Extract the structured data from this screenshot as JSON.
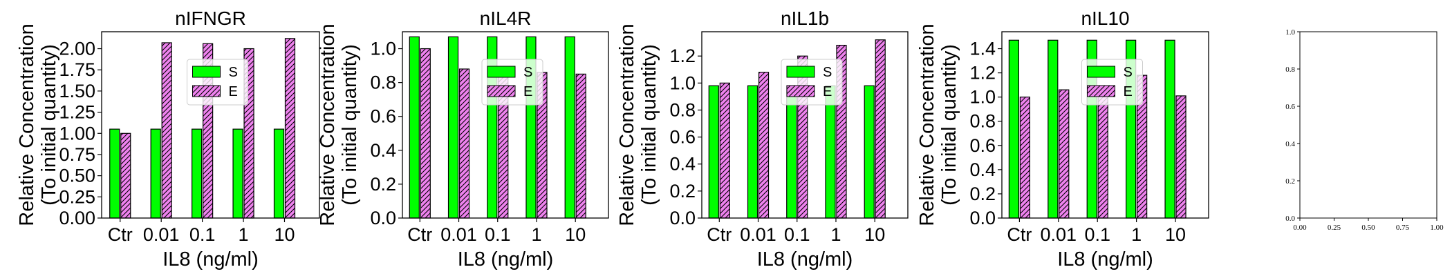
{
  "colors": {
    "S": "#00ff00",
    "E": "#ee82ee",
    "edge": "#000000"
  },
  "chart_data": [
    {
      "type": "bar",
      "title": "nIFNGR",
      "xlabel": "IL8 (ng/ml)",
      "ylabel": [
        "Relative Concentration",
        "(To initial quantity)"
      ],
      "categories": [
        "Ctr",
        "0.01",
        "0.1",
        "1",
        "10"
      ],
      "ylim": [
        0,
        2.2
      ],
      "yticks": [
        0.0,
        0.25,
        0.5,
        0.75,
        1.0,
        1.25,
        1.5,
        1.75,
        2.0
      ],
      "ytick_labels": [
        "0.00",
        "0.25",
        "0.50",
        "0.75",
        "1.00",
        "1.25",
        "1.50",
        "1.75",
        "2.00"
      ],
      "legend": "upper-center",
      "series": [
        {
          "name": "S",
          "values": [
            1.05,
            1.05,
            1.05,
            1.05,
            1.05
          ]
        },
        {
          "name": "E",
          "values": [
            1.0,
            2.07,
            2.06,
            2.0,
            2.12
          ]
        }
      ]
    },
    {
      "type": "bar",
      "title": "nIL4R",
      "xlabel": "IL8 (ng/ml)",
      "ylabel": [
        "Relative Concentration",
        "(To initial quantity)"
      ],
      "categories": [
        "Ctr",
        "0.01",
        "0.1",
        "1",
        "10"
      ],
      "ylim": [
        0,
        1.1
      ],
      "yticks": [
        0.0,
        0.2,
        0.4,
        0.6,
        0.8,
        1.0
      ],
      "ytick_labels": [
        "0.0",
        "0.2",
        "0.4",
        "0.6",
        "0.8",
        "1.0"
      ],
      "legend": "upper-center",
      "series": [
        {
          "name": "S",
          "values": [
            1.07,
            1.07,
            1.07,
            1.07,
            1.07
          ]
        },
        {
          "name": "E",
          "values": [
            1.0,
            0.88,
            0.87,
            0.86,
            0.85
          ]
        }
      ]
    },
    {
      "type": "bar",
      "title": "nIL1b",
      "xlabel": "IL8 (ng/ml)",
      "ylabel": [
        "Relative Concentration",
        "(To initial quantity)"
      ],
      "categories": [
        "Ctr",
        "0.01",
        "0.1",
        "1",
        "10"
      ],
      "ylim": [
        0,
        1.38
      ],
      "yticks": [
        0.0,
        0.2,
        0.4,
        0.6,
        0.8,
        1.0,
        1.2
      ],
      "ytick_labels": [
        "0.0",
        "0.2",
        "0.4",
        "0.6",
        "0.8",
        "1.0",
        "1.2"
      ],
      "legend": "upper-center",
      "series": [
        {
          "name": "S",
          "values": [
            0.98,
            0.98,
            0.98,
            0.98,
            0.98
          ]
        },
        {
          "name": "E",
          "values": [
            1.0,
            1.08,
            1.2,
            1.28,
            1.32
          ]
        }
      ]
    },
    {
      "type": "bar",
      "title": "nIL10",
      "xlabel": "IL8 (ng/ml)",
      "ylabel": [
        "Relative Concentration",
        "(To initial quantity)"
      ],
      "categories": [
        "Ctr",
        "0.01",
        "0.1",
        "1",
        "10"
      ],
      "ylim": [
        0,
        1.54
      ],
      "yticks": [
        0.0,
        0.2,
        0.4,
        0.6,
        0.8,
        1.0,
        1.2,
        1.4
      ],
      "ytick_labels": [
        "0.0",
        "0.2",
        "0.4",
        "0.6",
        "0.8",
        "1.0",
        "1.2",
        "1.4"
      ],
      "legend": "upper-center",
      "series": [
        {
          "name": "S",
          "values": [
            1.47,
            1.47,
            1.47,
            1.47,
            1.47
          ]
        },
        {
          "name": "E",
          "values": [
            1.0,
            1.06,
            1.06,
            1.18,
            1.01
          ]
        }
      ]
    },
    {
      "type": "empty",
      "xlim": [
        0,
        1
      ],
      "ylim": [
        0,
        1
      ],
      "xticks": [
        0.0,
        0.25,
        0.5,
        0.75,
        1.0
      ],
      "xtick_labels": [
        "0.00",
        "0.25",
        "0.50",
        "0.75",
        "1.00"
      ],
      "yticks": [
        0.0,
        0.2,
        0.4,
        0.6,
        0.8,
        1.0
      ],
      "ytick_labels": [
        "0.0",
        "0.2",
        "0.4",
        "0.6",
        "0.8",
        "1.0"
      ]
    }
  ]
}
